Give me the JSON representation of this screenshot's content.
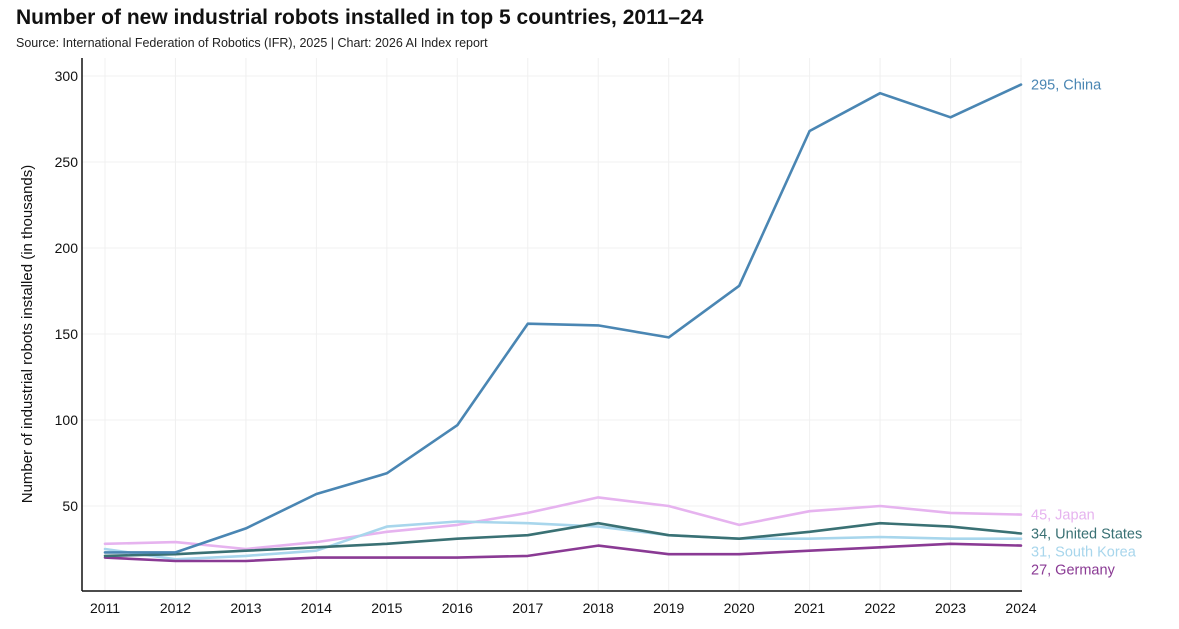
{
  "title": "Number of new industrial robots installed in top 5 countries, 2011–24",
  "subtitle": "Source: International Federation of Robotics (IFR), 2025 | Chart: 2026 AI Index report",
  "chart_data": {
    "type": "line",
    "ylabel": "Number of industrial robots installed (in thousands)",
    "xlabel": "",
    "ylim": [
      0,
      300
    ],
    "yticks": [
      50,
      100,
      150,
      200,
      250,
      300
    ],
    "x": [
      2011,
      2012,
      2013,
      2014,
      2015,
      2016,
      2017,
      2018,
      2019,
      2020,
      2021,
      2022,
      2023,
      2024
    ],
    "grid": "vertical and horizontal light gridlines",
    "series": [
      {
        "name": "China",
        "color": "#4a86b3",
        "end_label": "295, China",
        "values": [
          23,
          23,
          37,
          57,
          69,
          97,
          156,
          155,
          148,
          178,
          268,
          290,
          276,
          295
        ]
      },
      {
        "name": "Japan",
        "color": "#e6b3ef",
        "end_label": "45, Japan",
        "values": [
          28,
          29,
          25,
          29,
          35,
          39,
          46,
          55,
          50,
          39,
          47,
          50,
          46,
          45
        ]
      },
      {
        "name": "United States",
        "color": "#3a7174",
        "end_label": "34, United States",
        "values": [
          21,
          22,
          24,
          26,
          28,
          31,
          33,
          40,
          33,
          31,
          35,
          40,
          38,
          34
        ]
      },
      {
        "name": "South Korea",
        "color": "#a8d6ec",
        "end_label": "31, South Korea",
        "values": [
          25,
          19,
          21,
          24,
          38,
          41,
          40,
          38,
          33,
          31,
          31,
          32,
          31,
          31
        ]
      },
      {
        "name": "Germany",
        "color": "#8a3a94",
        "end_label": "27, Germany",
        "values": [
          20,
          18,
          18,
          20,
          20,
          20,
          21,
          27,
          22,
          22,
          24,
          26,
          28,
          27
        ]
      }
    ]
  }
}
